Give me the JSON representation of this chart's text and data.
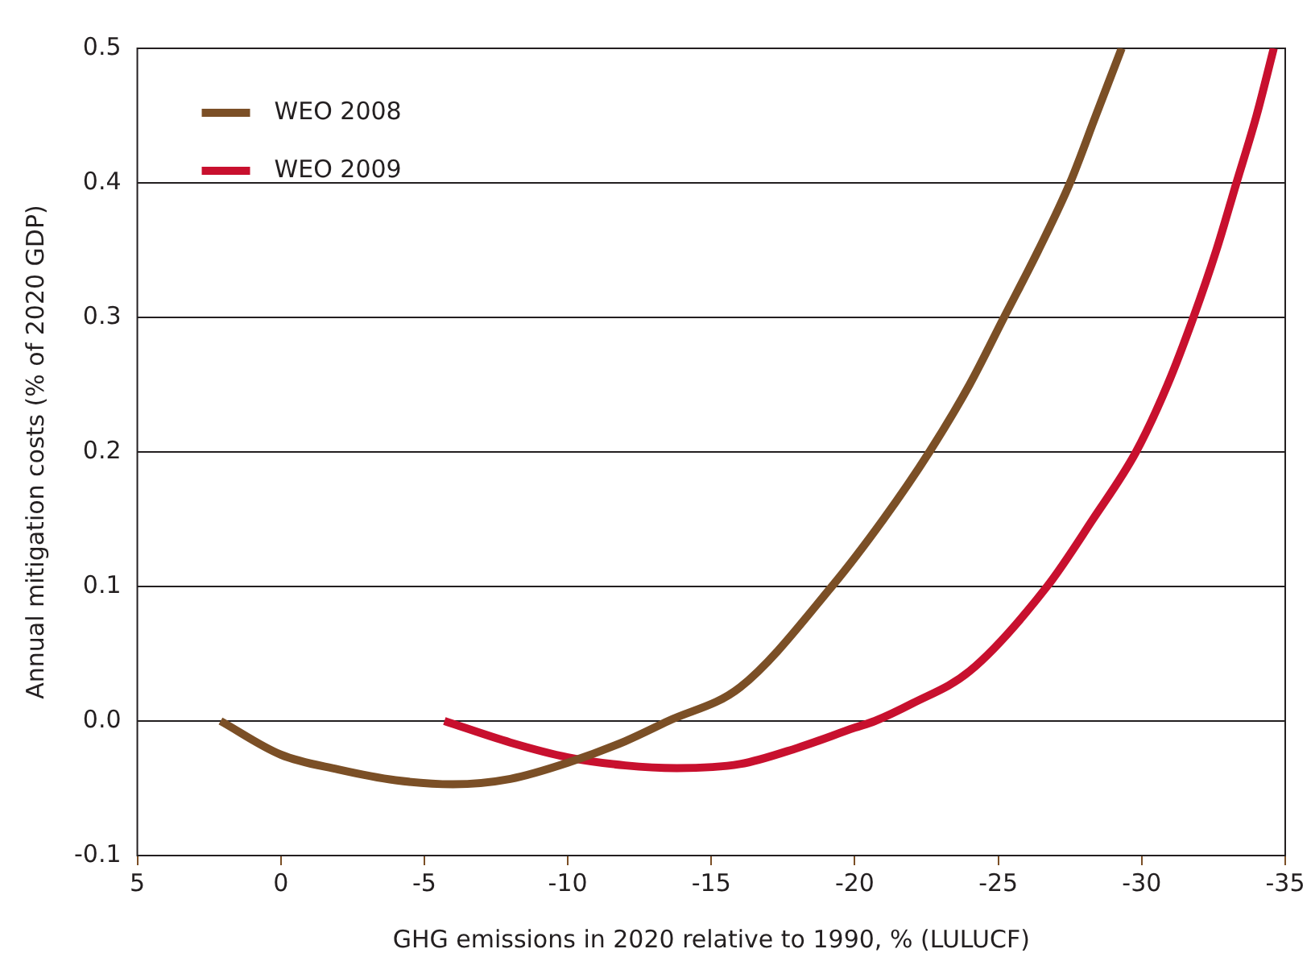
{
  "chart_data": {
    "type": "line",
    "xlabel": "GHG emissions in 2020 relative to 1990, % (LULUCF)",
    "ylabel": "Annual mitigation costs (% of 2020 GDP)",
    "xlim": [
      5,
      -35
    ],
    "xticks": [
      5,
      0,
      -5,
      -10,
      -15,
      -20,
      -25,
      -30,
      -35
    ],
    "ylim": [
      -0.1,
      0.5
    ],
    "yticks": [
      {
        "value": -0.1,
        "label": "-0.1"
      },
      {
        "value": 0,
        "label": "0.0"
      },
      {
        "value": 0.1,
        "label": "0.1"
      },
      {
        "value": 0.2,
        "label": "0.2"
      },
      {
        "value": 0.3,
        "label": "0.3"
      },
      {
        "value": 0.4,
        "label": "0.4"
      },
      {
        "value": 0.5,
        "label": "0.5"
      }
    ],
    "grid": "y",
    "legend": "top left",
    "marker": "none",
    "line_style": "solid",
    "series": [
      {
        "name": "WEO 2008",
        "color": "#7b4f26",
        "x": [
          2.1,
          0,
          -2,
          -4,
          -6,
          -8,
          -10,
          -12,
          -13.5,
          -16,
          -19.2,
          -21,
          -22.6,
          -24,
          -25.2,
          -26.4,
          -27.5,
          -28.4,
          -29.3
        ],
        "values": [
          0,
          -0.025,
          -0.036,
          -0.044,
          -0.047,
          -0.043,
          -0.031,
          -0.015,
          0,
          0.025,
          0.1,
          0.15,
          0.2,
          0.25,
          0.3,
          0.35,
          0.4,
          0.45,
          0.5
        ]
      },
      {
        "name": "WEO 2009",
        "color": "#c8102e",
        "x": [
          -5.7,
          -8,
          -10,
          -12,
          -13.8,
          -16,
          -18,
          -20,
          -20.7,
          -22,
          -24,
          -26.7,
          -28.3,
          -29.8,
          -30.9,
          -31.8,
          -32.6,
          -33.3,
          -34,
          -34.6
        ],
        "values": [
          0,
          -0.016,
          -0.027,
          -0.033,
          -0.035,
          -0.032,
          -0.02,
          -0.005,
          0,
          0.013,
          0.037,
          0.1,
          0.15,
          0.2,
          0.25,
          0.3,
          0.35,
          0.4,
          0.45,
          0.5
        ]
      }
    ]
  }
}
